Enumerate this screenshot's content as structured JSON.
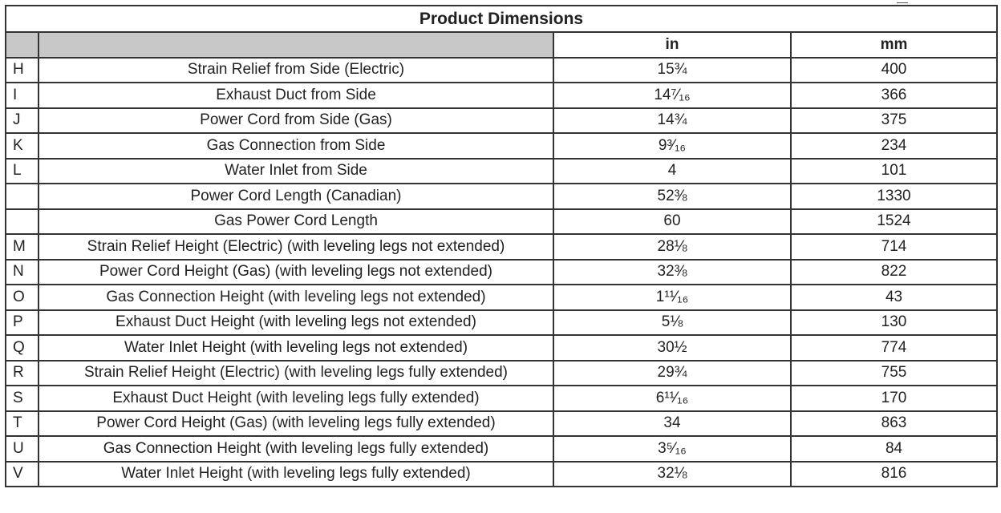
{
  "title": "Product Dimensions",
  "columns": {
    "letter": "",
    "description": "",
    "in": "in",
    "mm": "mm"
  },
  "rows": [
    {
      "letter": "H",
      "description": "Strain Relief from Side (Electric)",
      "in": "15¾",
      "mm": "400"
    },
    {
      "letter": "I",
      "description": "Exhaust Duct from Side",
      "in": "14⁷⁄₁₆",
      "mm": "366"
    },
    {
      "letter": "J",
      "description": "Power Cord from Side (Gas)",
      "in": "14¾",
      "mm": "375"
    },
    {
      "letter": "K",
      "description": "Gas Connection from Side",
      "in": "9³⁄₁₆",
      "mm": "234"
    },
    {
      "letter": "L",
      "description": "Water Inlet from Side",
      "in": "4",
      "mm": "101"
    },
    {
      "letter": "",
      "description": "Power Cord Length (Canadian)",
      "in": "52⅜",
      "mm": "1330"
    },
    {
      "letter": "",
      "description": "Gas Power Cord Length",
      "in": "60",
      "mm": "1524"
    },
    {
      "letter": "M",
      "description": "Strain Relief Height (Electric) (with leveling legs not extended)",
      "in": "28⅛",
      "mm": "714"
    },
    {
      "letter": "N",
      "description": "Power Cord Height (Gas) (with leveling legs not extended)",
      "in": "32⅜",
      "mm": "822"
    },
    {
      "letter": "O",
      "description": "Gas Connection Height (with leveling legs not extended)",
      "in": "1¹¹⁄₁₆",
      "mm": "43"
    },
    {
      "letter": "P",
      "description": "Exhaust Duct Height (with leveling legs not extended)",
      "in": "5⅛",
      "mm": "130"
    },
    {
      "letter": "Q",
      "description": "Water Inlet Height (with leveling legs not extended)",
      "in": "30½",
      "mm": "774"
    },
    {
      "letter": "R",
      "description": "Strain Relief Height (Electric) (with leveling legs fully extended)",
      "in": "29¾",
      "mm": "755"
    },
    {
      "letter": "S",
      "description": "Exhaust Duct Height (with leveling legs fully extended)",
      "in": "6¹¹⁄₁₆",
      "mm": "170"
    },
    {
      "letter": "T",
      "description": "Power Cord Height (Gas) (with leveling legs fully extended)",
      "in": "34",
      "mm": "863"
    },
    {
      "letter": "U",
      "description": "Gas Connection Height (with leveling legs fully extended)",
      "in": "3⁵⁄₁₆",
      "mm": "84"
    },
    {
      "letter": "V",
      "description": "Water Inlet Height (with leveling legs fully extended)",
      "in": "32⅛",
      "mm": "816"
    }
  ]
}
